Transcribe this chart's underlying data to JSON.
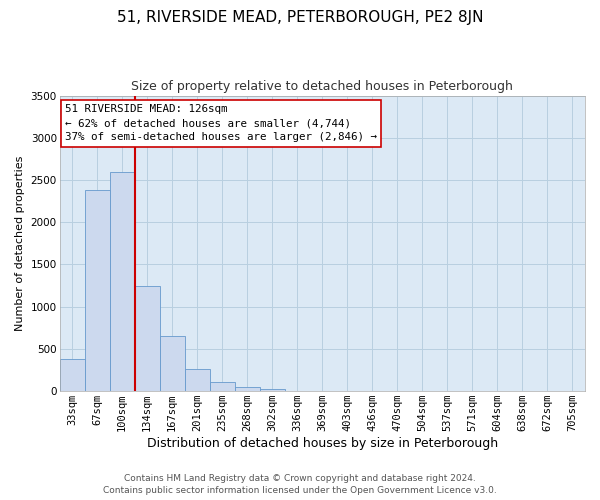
{
  "title": "51, RIVERSIDE MEAD, PETERBOROUGH, PE2 8JN",
  "subtitle": "Size of property relative to detached houses in Peterborough",
  "xlabel": "Distribution of detached houses by size in Peterborough",
  "ylabel": "Number of detached properties",
  "bar_labels": [
    "33sqm",
    "67sqm",
    "100sqm",
    "134sqm",
    "167sqm",
    "201sqm",
    "235sqm",
    "268sqm",
    "302sqm",
    "336sqm",
    "369sqm",
    "403sqm",
    "436sqm",
    "470sqm",
    "504sqm",
    "537sqm",
    "571sqm",
    "604sqm",
    "638sqm",
    "672sqm",
    "705sqm"
  ],
  "bar_heights": [
    380,
    2380,
    2600,
    1250,
    650,
    260,
    110,
    55,
    30,
    0,
    0,
    0,
    0,
    0,
    0,
    0,
    0,
    0,
    0,
    0,
    0
  ],
  "bar_color": "#ccd9ee",
  "bar_edge_color": "#6699cc",
  "vline_color": "#cc0000",
  "ylim": [
    0,
    3500
  ],
  "yticks": [
    0,
    500,
    1000,
    1500,
    2000,
    2500,
    3000,
    3500
  ],
  "annotation_title": "51 RIVERSIDE MEAD: 126sqm",
  "annotation_line1": "← 62% of detached houses are smaller (4,744)",
  "annotation_line2": "37% of semi-detached houses are larger (2,846) →",
  "annotation_box_color": "#ffffff",
  "annotation_box_edge": "#cc0000",
  "footer_line1": "Contains HM Land Registry data © Crown copyright and database right 2024.",
  "footer_line2": "Contains public sector information licensed under the Open Government Licence v3.0.",
  "background_color": "#ffffff",
  "plot_bg_color": "#dce9f5",
  "grid_color": "#b8cfe0",
  "title_fontsize": 11,
  "subtitle_fontsize": 9,
  "xlabel_fontsize": 9,
  "ylabel_fontsize": 8,
  "tick_fontsize": 7.5,
  "footer_fontsize": 6.5,
  "ann_fontsize": 7.8
}
